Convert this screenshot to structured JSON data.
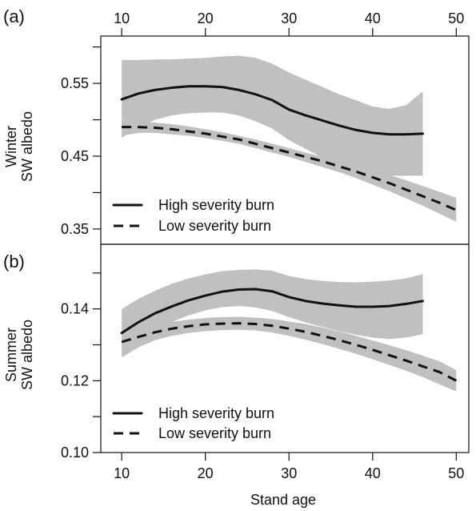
{
  "chart_data": [
    {
      "type": "line",
      "panel_label": "(a)",
      "ylabel_lines": [
        "Winter",
        "SW albedo"
      ],
      "xlim": [
        7.5,
        51.5
      ],
      "ylim": [
        0.329,
        0.615
      ],
      "x_ticks_top": [
        10,
        20,
        30,
        40,
        50
      ],
      "y_ticks": [
        0.35,
        0.45,
        0.55
      ],
      "y_tick_labels": [
        "0.35",
        "0.45",
        "0.55"
      ],
      "y_minor_ticks": [
        0.4,
        0.5,
        0.6
      ],
      "legend": {
        "position": "bottom-left",
        "entries": [
          "High severity burn",
          "Low severity burn"
        ]
      },
      "series": [
        {
          "name": "High severity burn",
          "line_style": "solid",
          "color": "#111111",
          "band_color": "#c0c0c0",
          "x": [
            10,
            12,
            14,
            16,
            18,
            20,
            22,
            24,
            26,
            28,
            30,
            32,
            34,
            36,
            38,
            40,
            42,
            44,
            46
          ],
          "y": [
            0.528,
            0.536,
            0.541,
            0.544,
            0.546,
            0.546,
            0.545,
            0.541,
            0.535,
            0.527,
            0.514,
            0.506,
            0.499,
            0.492,
            0.486,
            0.482,
            0.48,
            0.48,
            0.481
          ],
          "lower": [
            0.475,
            0.49,
            0.5,
            0.506,
            0.509,
            0.51,
            0.51,
            0.506,
            0.498,
            0.488,
            0.472,
            0.46,
            0.448,
            0.437,
            0.427,
            0.423,
            0.423,
            0.423,
            0.423
          ],
          "upper": [
            0.582,
            0.582,
            0.583,
            0.583,
            0.584,
            0.585,
            0.587,
            0.588,
            0.585,
            0.577,
            0.565,
            0.555,
            0.545,
            0.535,
            0.527,
            0.518,
            0.515,
            0.52,
            0.539
          ]
        },
        {
          "name": "Low severity burn",
          "line_style": "dashed",
          "color": "#111111",
          "band_color": "#c0c0c0",
          "x": [
            10,
            12,
            14,
            16,
            18,
            20,
            22,
            24,
            26,
            28,
            30,
            32,
            34,
            36,
            38,
            40,
            42,
            44,
            46,
            48,
            50
          ],
          "y": [
            0.49,
            0.49,
            0.489,
            0.487,
            0.484,
            0.481,
            0.477,
            0.473,
            0.467,
            0.461,
            0.455,
            0.449,
            0.443,
            0.436,
            0.429,
            0.421,
            0.413,
            0.404,
            0.395,
            0.386,
            0.376
          ],
          "lower": [
            0.478,
            0.482,
            0.482,
            0.48,
            0.478,
            0.475,
            0.471,
            0.467,
            0.461,
            0.455,
            0.449,
            0.442,
            0.435,
            0.428,
            0.42,
            0.411,
            0.402,
            0.392,
            0.382,
            0.371,
            0.36
          ],
          "upper": [
            0.503,
            0.498,
            0.496,
            0.494,
            0.491,
            0.487,
            0.483,
            0.478,
            0.473,
            0.467,
            0.461,
            0.455,
            0.449,
            0.443,
            0.437,
            0.431,
            0.424,
            0.417,
            0.409,
            0.401,
            0.393
          ]
        }
      ]
    },
    {
      "type": "line",
      "panel_label": "(b)",
      "ylabel_lines": [
        "Summer",
        "SW albedo"
      ],
      "xlabel": "Stand age",
      "xlim": [
        7.5,
        51.5
      ],
      "ylim": [
        0.1,
        0.158
      ],
      "x_ticks": [
        10,
        20,
        30,
        40,
        50
      ],
      "y_ticks": [
        0.1,
        0.12,
        0.14
      ],
      "y_tick_labels": [
        "0.10",
        "0.12",
        "0.14"
      ],
      "y_minor_ticks": [
        0.11,
        0.13,
        0.15
      ],
      "legend": {
        "position": "bottom-left",
        "entries": [
          "High severity burn",
          "Low severity burn"
        ]
      },
      "series": [
        {
          "name": "High severity burn",
          "line_style": "solid",
          "color": "#111111",
          "band_color": "#c0c0c0",
          "x": [
            10,
            12,
            14,
            16,
            18,
            20,
            22,
            24,
            26,
            28,
            30,
            32,
            34,
            36,
            38,
            40,
            42,
            44,
            46
          ],
          "y": [
            0.1333,
            0.1363,
            0.1388,
            0.1407,
            0.1424,
            0.1437,
            0.1448,
            0.1454,
            0.1455,
            0.1449,
            0.1433,
            0.1422,
            0.1415,
            0.141,
            0.1406,
            0.1406,
            0.1408,
            0.1414,
            0.1422
          ],
          "lower": [
            0.1282,
            0.1315,
            0.1342,
            0.1364,
            0.1382,
            0.1396,
            0.1405,
            0.1408,
            0.1404,
            0.1394,
            0.1377,
            0.1362,
            0.135,
            0.1338,
            0.1328,
            0.132,
            0.1316,
            0.132,
            0.133
          ],
          "upper": [
            0.14,
            0.1428,
            0.1451,
            0.147,
            0.1485,
            0.1496,
            0.1505,
            0.1509,
            0.151,
            0.1506,
            0.1492,
            0.1483,
            0.1478,
            0.1475,
            0.1474,
            0.1476,
            0.1479,
            0.1485,
            0.1497
          ]
        },
        {
          "name": "Low severity burn",
          "line_style": "dashed",
          "color": "#111111",
          "band_color": "#c0c0c0",
          "x": [
            10,
            12,
            14,
            16,
            18,
            20,
            22,
            24,
            26,
            28,
            30,
            32,
            34,
            36,
            38,
            40,
            42,
            44,
            46,
            48,
            50
          ],
          "y": [
            0.1308,
            0.1322,
            0.1335,
            0.1345,
            0.1352,
            0.1357,
            0.1359,
            0.136,
            0.1358,
            0.1353,
            0.1345,
            0.1336,
            0.1325,
            0.1313,
            0.13,
            0.1286,
            0.1271,
            0.1256,
            0.124,
            0.1224,
            0.12
          ],
          "lower": [
            0.1265,
            0.1293,
            0.1313,
            0.1325,
            0.1333,
            0.1338,
            0.1341,
            0.1342,
            0.134,
            0.1334,
            0.1325,
            0.1314,
            0.1302,
            0.1289,
            0.1275,
            0.126,
            0.1244,
            0.1228,
            0.121,
            0.119,
            0.117
          ],
          "upper": [
            0.135,
            0.1351,
            0.1356,
            0.1364,
            0.137,
            0.1375,
            0.1377,
            0.1378,
            0.1376,
            0.1372,
            0.1365,
            0.1358,
            0.1348,
            0.1337,
            0.1325,
            0.1312,
            0.1299,
            0.1285,
            0.127,
            0.1254,
            0.123
          ]
        }
      ]
    }
  ]
}
